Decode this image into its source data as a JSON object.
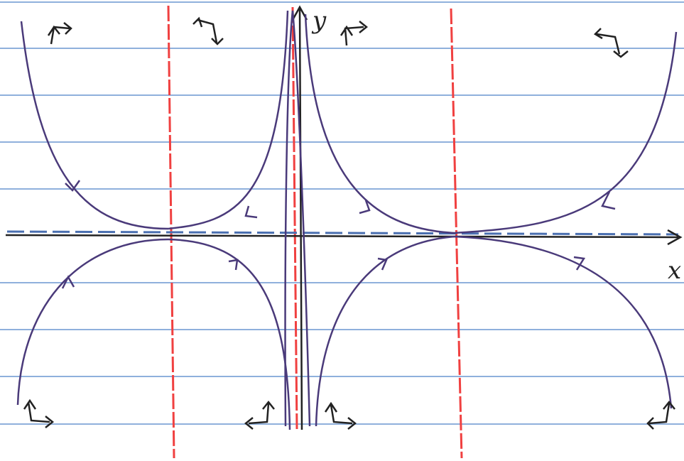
{
  "axes": {
    "y_label": "y",
    "x_label": "x"
  }
}
